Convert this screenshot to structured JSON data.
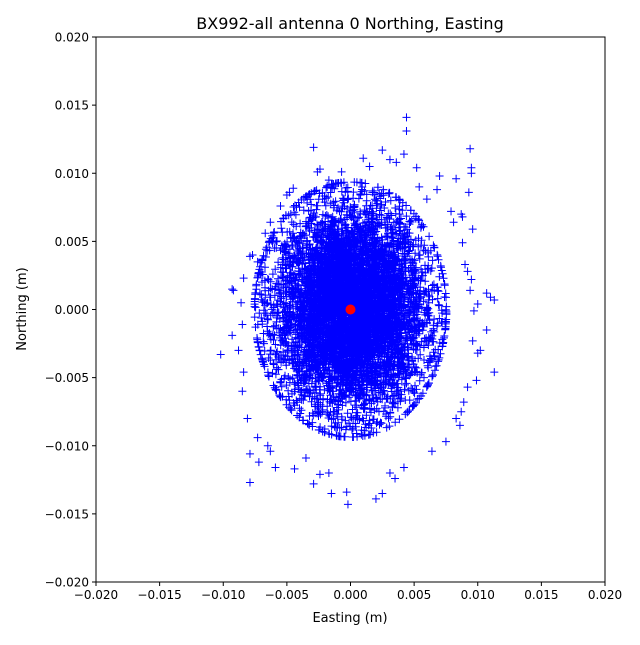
{
  "chart_data": {
    "type": "scatter",
    "title": "BX992-all antenna 0 Northing, Easting",
    "xlabel": "Easting (m)",
    "ylabel": "Northing (m)",
    "xlim": [
      -0.02,
      0.02
    ],
    "ylim": [
      -0.02,
      0.02
    ],
    "xticks": [
      "−0.020",
      "−0.015",
      "−0.010",
      "−0.005",
      "0.000",
      "0.005",
      "0.010",
      "0.015",
      "0.020"
    ],
    "yticks": [
      "−0.020",
      "−0.015",
      "−0.010",
      "−0.005",
      "0.000",
      "0.005",
      "0.010",
      "0.015",
      "0.020"
    ],
    "grid": false,
    "series": [
      {
        "marker": "+",
        "color": "#0000ff",
        "dense_cloud": {
          "center": [
            0.0,
            0.0
          ],
          "sigma_easting": 0.0029,
          "sigma_northing": 0.0036
        },
        "points": [
          [
            0.0044,
            0.0141
          ],
          [
            0.0044,
            0.0131
          ],
          [
            -0.0029,
            0.0119
          ],
          [
            0.0094,
            0.0118
          ],
          [
            0.0025,
            0.0117
          ],
          [
            0.0042,
            0.0114
          ],
          [
            0.0095,
            0.0104
          ],
          [
            0.0095,
            0.01
          ],
          [
            0.007,
            0.0098
          ],
          [
            0.0083,
            0.0096
          ],
          [
            -0.0007,
            0.0101
          ],
          [
            0.0093,
            0.0086
          ],
          [
            0.0087,
            0.007
          ],
          [
            0.0088,
            0.0068
          ],
          [
            0.0096,
            0.0059
          ],
          [
            0.0088,
            0.0049
          ],
          [
            0.009,
            0.0033
          ],
          [
            0.0092,
            0.0028
          ],
          [
            0.0095,
            0.0022
          ],
          [
            0.0094,
            0.0014
          ],
          [
            0.0107,
            0.0012
          ],
          [
            0.011,
            0.0009
          ],
          [
            0.0113,
            0.0007
          ],
          [
            0.01,
            0.0004
          ],
          [
            0.0097,
            -0.0001
          ],
          [
            0.0107,
            -0.0015
          ],
          [
            0.0096,
            -0.0023
          ],
          [
            0.01,
            -0.0032
          ],
          [
            0.0102,
            -0.003
          ],
          [
            0.0113,
            -0.0046
          ],
          [
            0.0099,
            -0.0052
          ],
          [
            0.0092,
            -0.0057
          ],
          [
            0.0089,
            -0.0068
          ],
          [
            0.0087,
            -0.0075
          ],
          [
            0.0083,
            -0.008
          ],
          [
            0.0064,
            -0.0104
          ],
          [
            0.0042,
            -0.0116
          ],
          [
            0.0025,
            -0.0135
          ],
          [
            0.002,
            -0.0139
          ],
          [
            -0.0002,
            -0.0143
          ],
          [
            -0.0003,
            -0.0134
          ],
          [
            -0.0015,
            -0.0135
          ],
          [
            -0.0029,
            -0.0128
          ],
          [
            -0.0024,
            -0.0121
          ],
          [
            -0.0044,
            -0.0117
          ],
          [
            -0.0059,
            -0.0116
          ],
          [
            -0.0072,
            -0.0112
          ],
          [
            -0.0079,
            -0.0127
          ],
          [
            -0.0079,
            -0.0106
          ],
          [
            -0.0073,
            -0.0094
          ],
          [
            -0.0081,
            -0.008
          ],
          [
            -0.0085,
            -0.006
          ],
          [
            -0.0084,
            -0.0046
          ],
          [
            -0.0102,
            -0.0033
          ],
          [
            -0.0093,
            -0.0019
          ],
          [
            -0.0085,
            -0.0011
          ],
          [
            -0.0092,
            0.0014
          ],
          [
            -0.0093,
            0.0015
          ],
          [
            -0.0084,
            0.0023
          ],
          [
            -0.0079,
            0.0039
          ],
          [
            -0.0077,
            0.004
          ],
          [
            -0.0073,
            0.0035
          ],
          [
            -0.0067,
            0.0056
          ],
          [
            -0.0063,
            0.0064
          ],
          [
            -0.0055,
            0.0076
          ],
          [
            -0.005,
            0.0084
          ],
          [
            -0.0048,
            0.0086
          ],
          [
            -0.0045,
            0.0089
          ],
          [
            -0.0026,
            0.0101
          ],
          [
            -0.0024,
            0.0103
          ],
          [
            -0.0017,
            0.0095
          ],
          [
            0.001,
            0.0111
          ],
          [
            0.0015,
            0.0105
          ],
          [
            0.0031,
            0.011
          ],
          [
            0.0036,
            0.0108
          ],
          [
            0.0052,
            0.0104
          ],
          [
            0.0054,
            0.009
          ],
          [
            0.0068,
            0.0088
          ],
          [
            0.006,
            0.0081
          ],
          [
            0.0079,
            0.0072
          ],
          [
            0.0081,
            0.0064
          ],
          [
            0.0086,
            -0.0085
          ],
          [
            0.0075,
            -0.0097
          ],
          [
            0.0031,
            -0.012
          ],
          [
            0.0035,
            -0.0124
          ],
          [
            -0.0017,
            -0.012
          ],
          [
            -0.0035,
            -0.0109
          ],
          [
            -0.0063,
            -0.0104
          ],
          [
            -0.0065,
            -0.01
          ],
          [
            -0.0088,
            -0.003
          ],
          [
            -0.0086,
            0.0005
          ]
        ]
      },
      {
        "marker": "o",
        "color": "#ff0000",
        "points": [
          [
            0.0,
            0.0
          ]
        ]
      }
    ]
  }
}
